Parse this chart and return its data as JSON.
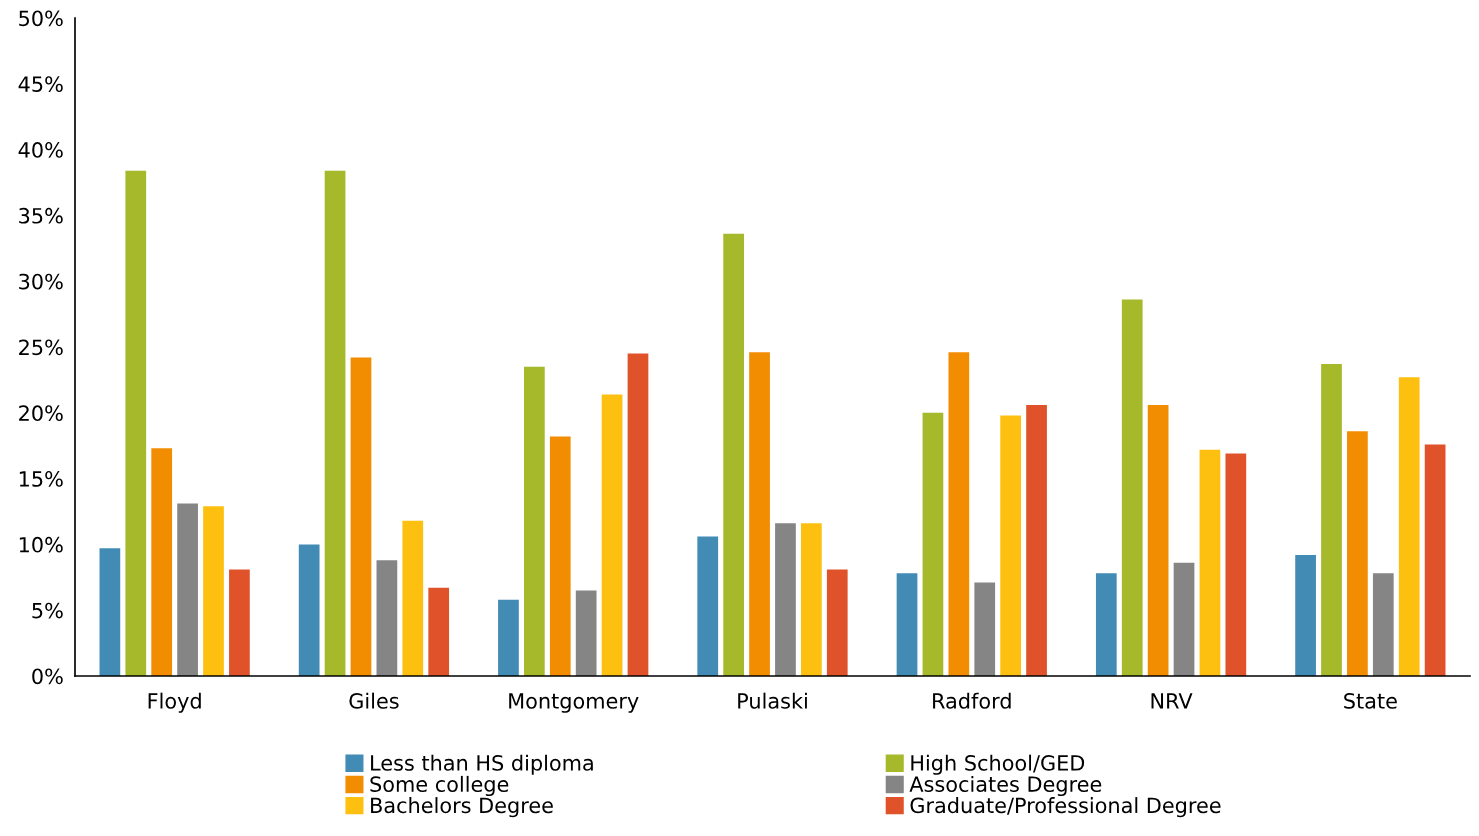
{
  "chart_data": {
    "type": "bar",
    "categories": [
      "Floyd",
      "Giles",
      "Montgomery",
      "Pulaski",
      "Radford",
      "NRV",
      "State"
    ],
    "series": [
      {
        "name": "Less than HS diploma",
        "color": "#428bb5",
        "values": [
          9.7,
          10.0,
          5.8,
          10.6,
          7.8,
          7.8,
          9.2
        ]
      },
      {
        "name": "High School/GED",
        "color": "#a5b92b",
        "values": [
          38.4,
          38.4,
          23.5,
          33.6,
          20.0,
          28.6,
          23.7
        ]
      },
      {
        "name": "Some college",
        "color": "#f28c00",
        "values": [
          17.3,
          24.2,
          18.2,
          24.6,
          24.6,
          20.6,
          18.6
        ]
      },
      {
        "name": "Associates Degree",
        "color": "#858585",
        "values": [
          13.1,
          8.8,
          6.5,
          11.6,
          7.1,
          8.6,
          7.8
        ]
      },
      {
        "name": "Bachelors Degree",
        "color": "#fdc010",
        "values": [
          12.9,
          11.8,
          21.4,
          11.6,
          19.8,
          17.2,
          22.7
        ]
      },
      {
        "name": "Graduate/Professional Degree",
        "color": "#e0532a",
        "values": [
          8.1,
          6.7,
          24.5,
          8.1,
          20.6,
          16.9,
          17.6
        ]
      }
    ],
    "ylim": [
      0,
      50
    ],
    "yticks": [
      {
        "value": 0,
        "label": "0%"
      },
      {
        "value": 5,
        "label": "5%"
      },
      {
        "value": 10,
        "label": "10%"
      },
      {
        "value": 15,
        "label": "15%"
      },
      {
        "value": 20,
        "label": "20%"
      },
      {
        "value": 25,
        "label": "25%"
      },
      {
        "value": 30,
        "label": "30%"
      },
      {
        "value": 35,
        "label": "35%"
      },
      {
        "value": 40,
        "label": "40%"
      },
      {
        "value": 45,
        "label": "45%"
      },
      {
        "value": 50,
        "label": "50%"
      }
    ],
    "grid": false,
    "legend": "bottom"
  }
}
